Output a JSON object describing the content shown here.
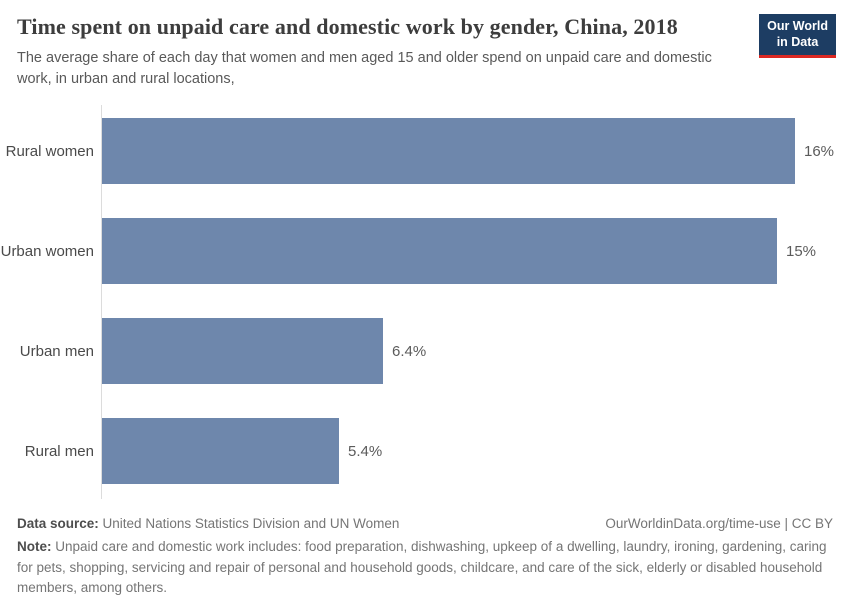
{
  "header": {
    "title": "Time spent on unpaid care and domestic work by gender, China, 2018",
    "subtitle": "The average share of each day that women and men aged 15 and older spend on unpaid care and domestic work, in urban and rural locations,",
    "logo": {
      "line1": "Our World",
      "line2": "in Data"
    }
  },
  "chart_data": {
    "type": "bar",
    "orientation": "horizontal",
    "title": "Time spent on unpaid care and domestic work by gender, China, 2018",
    "categories": [
      "Rural women",
      "Urban women",
      "Urban men",
      "Rural men"
    ],
    "values": [
      15.8,
      15.4,
      6.4,
      5.4
    ],
    "value_labels": [
      "16%",
      "15%",
      "6.4%",
      "5.4%"
    ],
    "xlabel": "",
    "ylabel": "",
    "xlim": [
      0,
      16.6
    ],
    "grid": false,
    "legend": false,
    "bar_color": "#6e87ac"
  },
  "footer": {
    "source_label": "Data source:",
    "source_text": "United Nations Statistics Division and UN Women",
    "attribution": "OurWorldinData.org/time-use | CC BY",
    "note_label": "Note:",
    "note_text": "Unpaid care and domestic work includes: food preparation, dishwashing, upkeep of a dwelling, laundry, ironing, gardening, caring for pets, shopping, servicing and repair of personal and household goods, childcare, and care of the sick, elderly or disabled household members, among others."
  },
  "colors": {
    "bar": "#6e87ac",
    "axis": "#dcdcdc",
    "logo_navy": "#1d3d63",
    "logo_red": "#dc2822"
  }
}
